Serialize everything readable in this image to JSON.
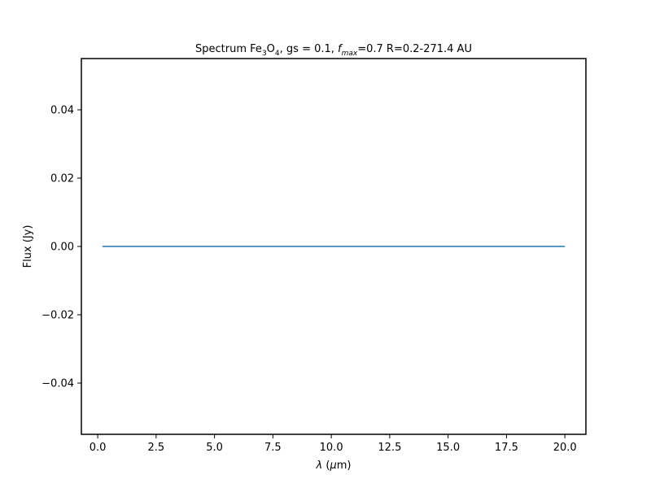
{
  "chart_data": {
    "type": "line",
    "title": {
      "prefix": "Spectrum Fe",
      "sub1": "3",
      "mid1": "O",
      "sub2": "4",
      "mid2": ", gs = 0.1, ",
      "fvar": "f",
      "fsub": "max",
      "suffix": "=0.7 R=0.2-271.4 AU"
    },
    "xlabel": {
      "symbol": "λ",
      "open": " (",
      "unit_greek": "μ",
      "unit_rest": "m)"
    },
    "ylabel": "Flux (Jy)",
    "xlim": [
      -0.7,
      20.9
    ],
    "ylim": [
      -0.055,
      0.055
    ],
    "xticks": [
      0.0,
      2.5,
      5.0,
      7.5,
      10.0,
      12.5,
      15.0,
      17.5,
      20.0
    ],
    "xtick_labels": [
      "0.0",
      "2.5",
      "5.0",
      "7.5",
      "10.0",
      "12.5",
      "15.0",
      "17.5",
      "20.0"
    ],
    "yticks": [
      0.04,
      0.02,
      0.0,
      -0.02,
      -0.04
    ],
    "ytick_labels": [
      "0.04",
      "0.02",
      "0.00",
      "−0.02",
      "−0.04"
    ],
    "grid": false,
    "series": [
      {
        "color": "#1f77b4",
        "x": [
          0.2,
          20.0
        ],
        "y": [
          0.0,
          0.0
        ]
      }
    ]
  }
}
